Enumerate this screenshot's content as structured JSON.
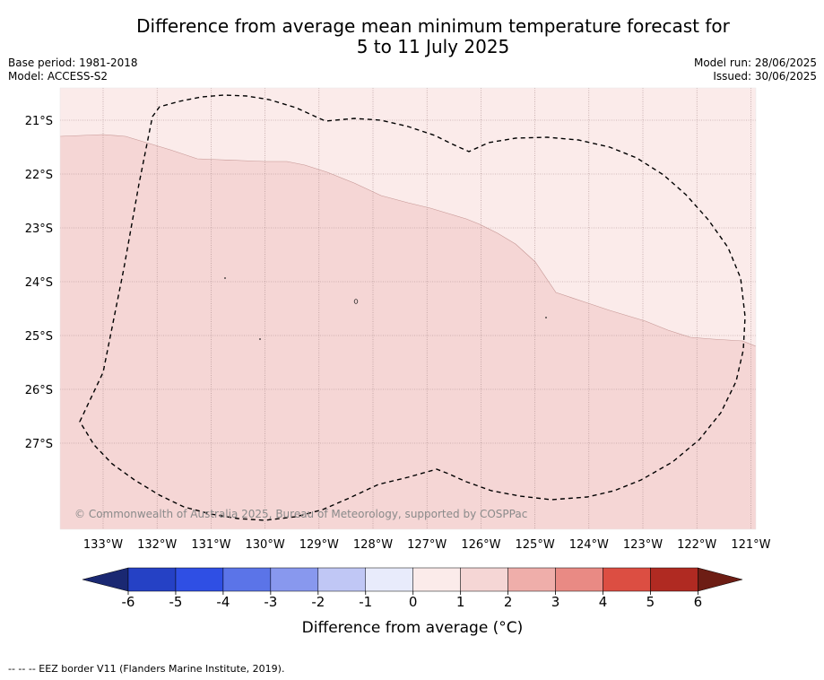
{
  "title": {
    "line1": "Difference from average mean minimum temperature forecast for",
    "line2": "5 to 11 July 2025"
  },
  "meta": {
    "base_period": "Base period: 1981-2018",
    "model": "Model: ACCESS-S2",
    "model_run": "Model run: 28/06/2025",
    "issued": "Issued: 30/06/2025"
  },
  "map": {
    "lat_labels": [
      "21°S",
      "22°S",
      "23°S",
      "24°S",
      "25°S",
      "26°S",
      "27°S"
    ],
    "lon_labels": [
      "133°W",
      "132°W",
      "131°W",
      "130°W",
      "129°W",
      "128°W",
      "127°W",
      "126°W",
      "125°W",
      "124°W",
      "123°W",
      "122°W",
      "121°W"
    ],
    "copyright": "© Commonwealth of Australia 2025, Bureau of Meteorology, supported by COSPPac",
    "region_colors": {
      "band_1_2": "#f5d6d5",
      "band_0_1": "#fbebea"
    }
  },
  "colorbar": {
    "ticks": [
      "-6",
      "-5",
      "-4",
      "-3",
      "-2",
      "-1",
      "0",
      "1",
      "2",
      "3",
      "4",
      "5",
      "6"
    ],
    "colors": [
      "#213596",
      "#2541c5",
      "#2f4fe4",
      "#5b74e8",
      "#8898ee",
      "#c0c7f5",
      "#e8ebfb",
      "#fbebea",
      "#f5d6d5",
      "#efaeaa",
      "#e98a84",
      "#dc4e42",
      "#b02a22"
    ],
    "extend_low_color": "#1a2872",
    "extend_high_color": "#6d1d14",
    "label": "Difference from average (°C)"
  },
  "footnote": "--  --  -- EEZ border V11 (Flanders Marine Institute, 2019)."
}
